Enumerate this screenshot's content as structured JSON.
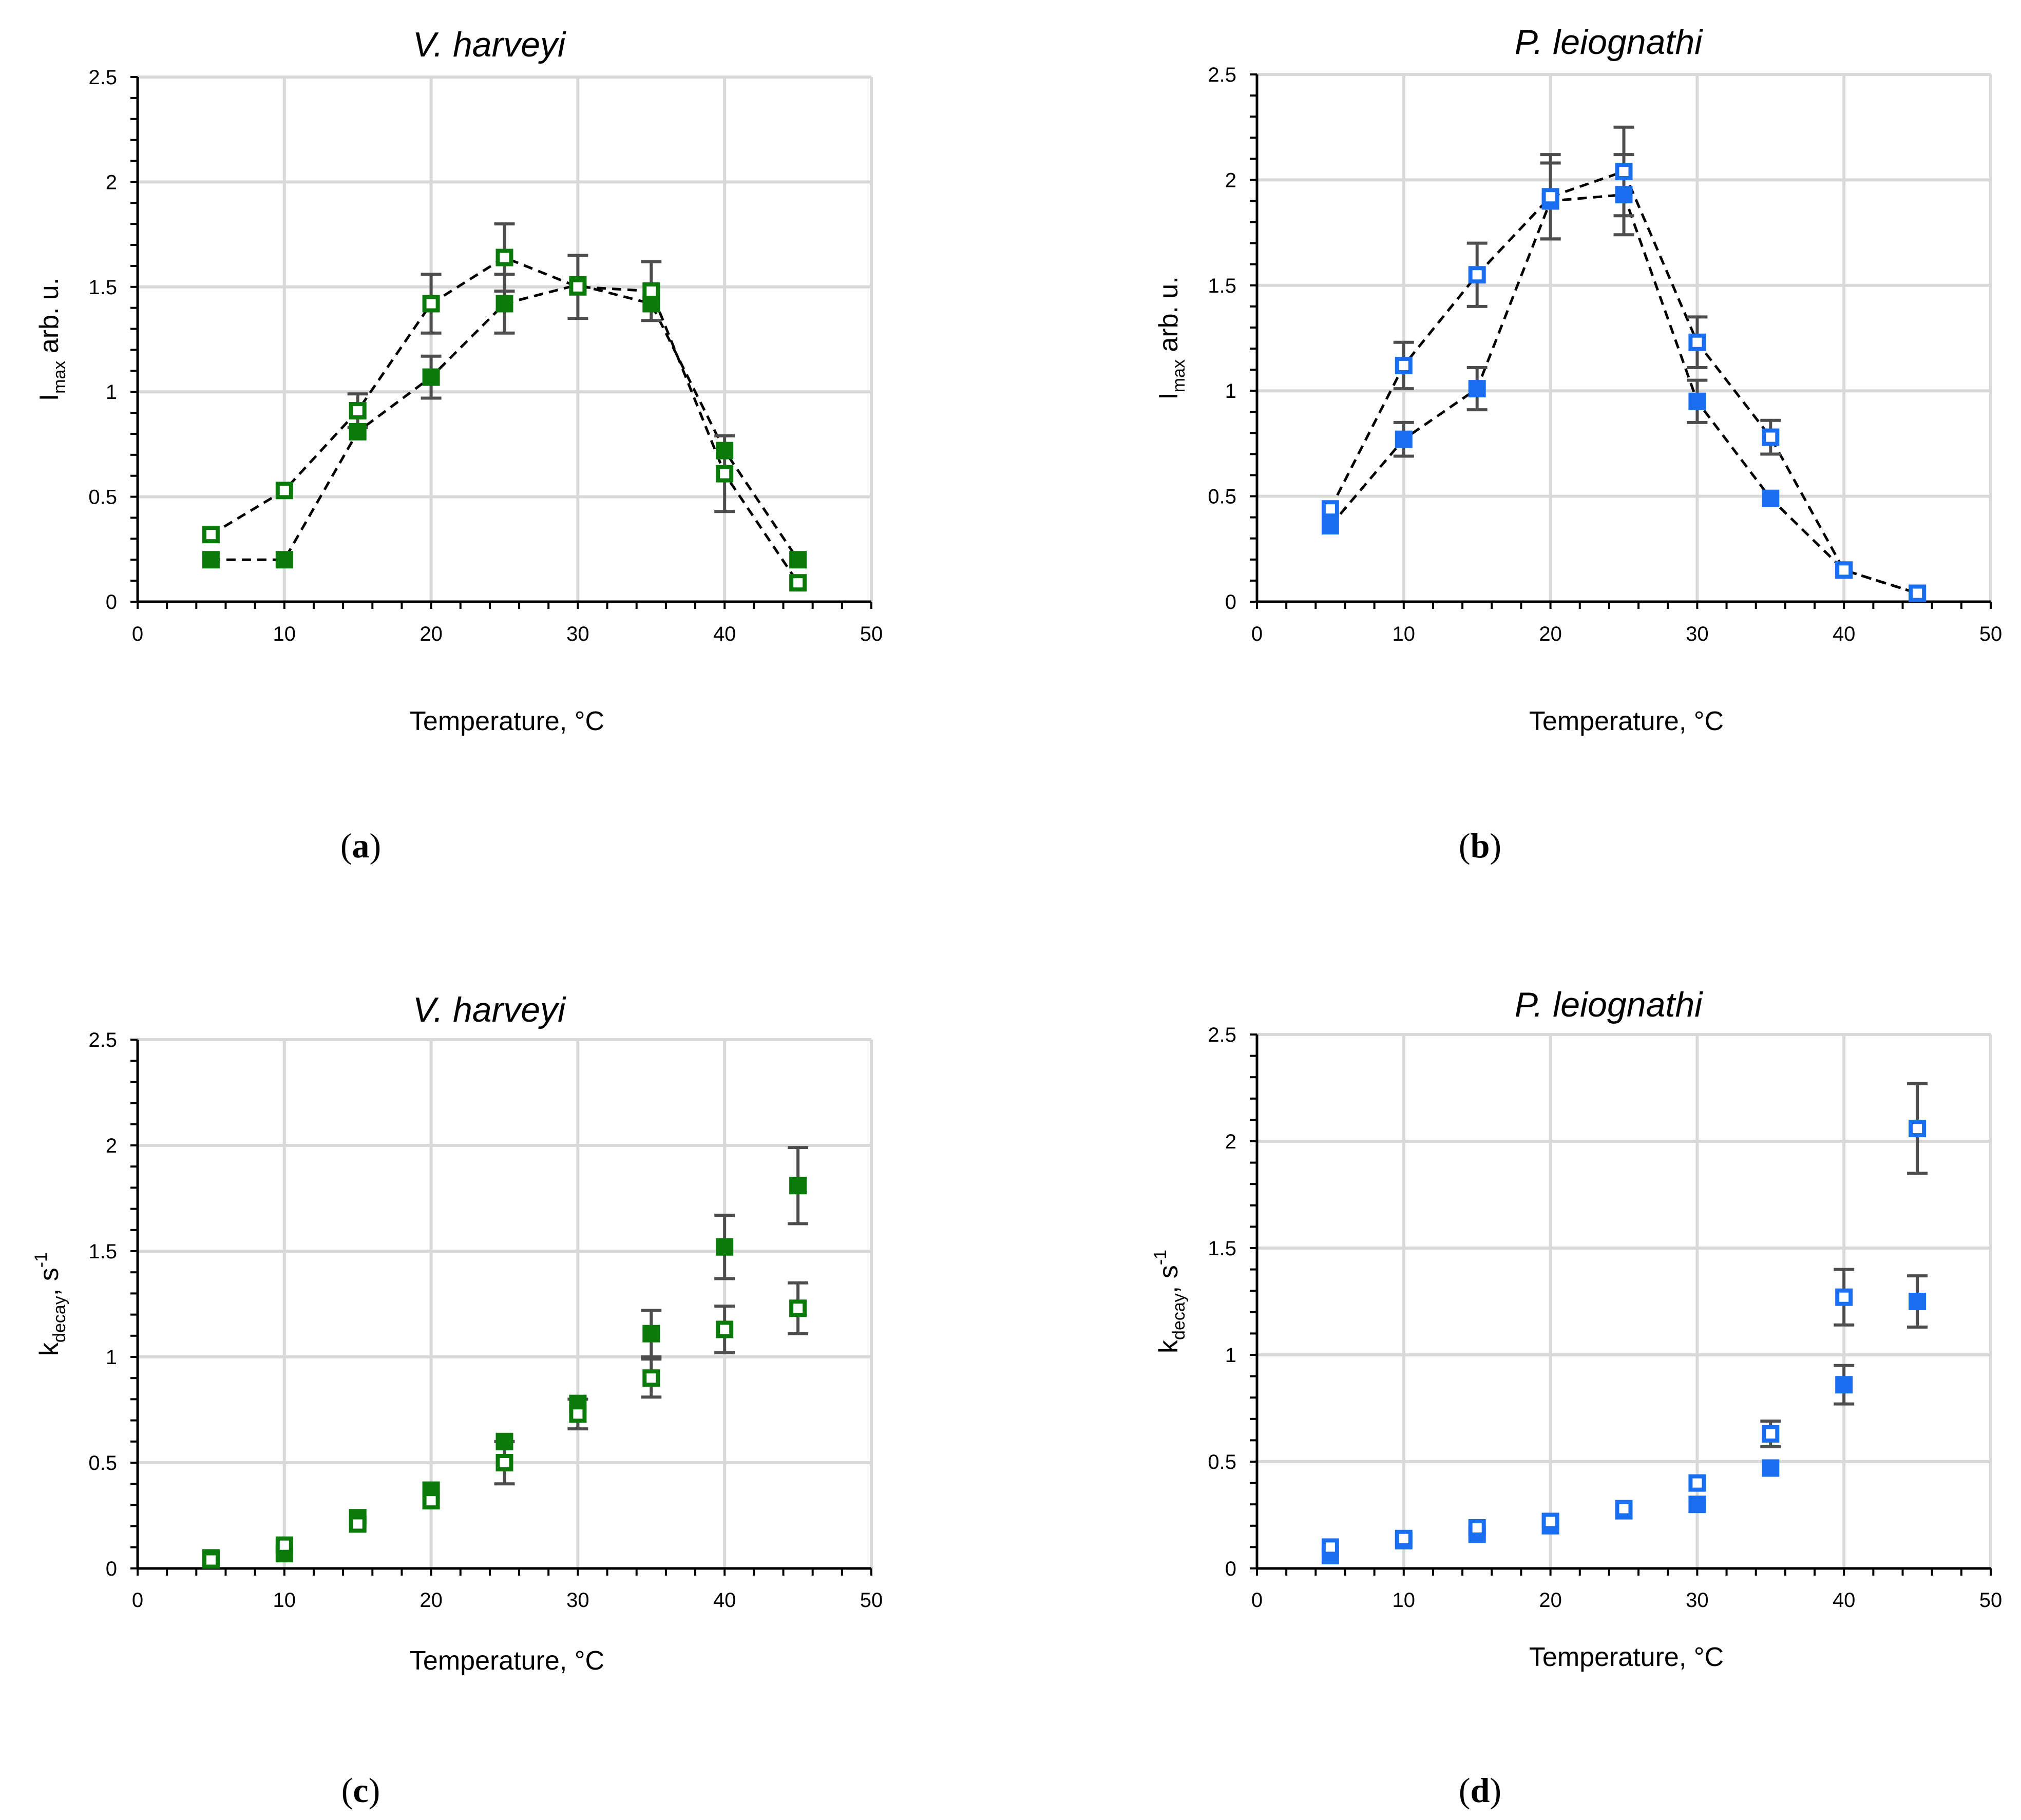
{
  "figure": {
    "x_axis_label": "Temperature, °C",
    "x_ticks": [
      "0",
      "10",
      "20",
      "30",
      "40",
      "50"
    ],
    "y_ticks": [
      "0",
      "0.5",
      "1",
      "1.5",
      "2",
      "2.5"
    ],
    "marker_styles": {
      "filled": "filled square",
      "open": "open square"
    }
  },
  "colors": {
    "green": "#0a7a0a",
    "blue": "#1a6ff0",
    "errorbar": "#4d4d4d",
    "grid": "#d9d9d9",
    "dashed": "#000000"
  },
  "chart_data": [
    {
      "type": "scatter",
      "panel": "a",
      "title": "V. harveyi",
      "ylabel_main": "I",
      "ylabel_sub": "max",
      "ylabel_rest": " arb. u.",
      "xlabel": "Temperature, °C",
      "xlim": [
        0,
        50
      ],
      "ylim": [
        0,
        2.5
      ],
      "color": "green",
      "dashed_lines": true,
      "series": [
        {
          "name": "filled",
          "x": [
            5,
            10,
            15,
            20,
            25,
            30,
            35,
            40,
            45
          ],
          "y": [
            0.2,
            0.2,
            0.81,
            1.07,
            1.42,
            1.51,
            1.42,
            0.72,
            0.2
          ],
          "err": [
            0,
            0,
            0,
            0.1,
            0.14,
            0,
            0,
            0,
            0
          ]
        },
        {
          "name": "open",
          "x": [
            5,
            10,
            15,
            20,
            25,
            30,
            35,
            40,
            45
          ],
          "y": [
            0.32,
            0.53,
            0.91,
            1.42,
            1.64,
            1.5,
            1.48,
            0.61,
            0.09
          ],
          "err": [
            0,
            0,
            0.08,
            0.14,
            0.16,
            0.15,
            0.14,
            0.18,
            0
          ]
        }
      ]
    },
    {
      "type": "scatter",
      "panel": "b",
      "title": "P. leiognathi",
      "ylabel_main": "I",
      "ylabel_sub": "max",
      "ylabel_rest": " arb. u.",
      "xlabel": "Temperature, °C",
      "xlim": [
        0,
        50
      ],
      "ylim": [
        0,
        2.5
      ],
      "color": "blue",
      "dashed_lines": true,
      "series": [
        {
          "name": "filled",
          "x": [
            5,
            10,
            15,
            20,
            25,
            30,
            35,
            40,
            45
          ],
          "y": [
            0.36,
            0.77,
            1.01,
            1.9,
            1.93,
            0.95,
            0.49,
            0.15,
            0.04
          ],
          "err": [
            0,
            0.08,
            0.1,
            0.18,
            0.19,
            0.1,
            0,
            0,
            0
          ]
        },
        {
          "name": "open",
          "x": [
            5,
            10,
            15,
            20,
            25,
            30,
            35,
            40,
            45
          ],
          "y": [
            0.44,
            1.12,
            1.55,
            1.92,
            2.04,
            1.23,
            0.78,
            0.15,
            0.04
          ],
          "err": [
            0,
            0.11,
            0.15,
            0.2,
            0.21,
            0.12,
            0.08,
            0,
            0
          ]
        }
      ]
    },
    {
      "type": "scatter",
      "panel": "c",
      "title": "V. harveyi",
      "ylabel_main": "k",
      "ylabel_sub": "decay",
      "ylabel_rest": ", s",
      "ylabel_sup": "-1",
      "xlabel": "Temperature, °C",
      "xlim": [
        0,
        50
      ],
      "ylim": [
        0,
        2.5
      ],
      "color": "green",
      "dashed_lines": false,
      "series": [
        {
          "name": "filled",
          "x": [
            5,
            10,
            15,
            20,
            25,
            30,
            35,
            40,
            45
          ],
          "y": [
            0.05,
            0.07,
            0.24,
            0.37,
            0.6,
            0.78,
            1.11,
            1.52,
            1.81
          ],
          "err": [
            0,
            0,
            0,
            0,
            0,
            0,
            0.11,
            0.15,
            0.18
          ]
        },
        {
          "name": "open",
          "x": [
            5,
            10,
            15,
            20,
            25,
            30,
            35,
            40,
            45
          ],
          "y": [
            0.04,
            0.11,
            0.21,
            0.32,
            0.5,
            0.73,
            0.9,
            1.13,
            1.23
          ],
          "err": [
            0,
            0,
            0,
            0,
            0.1,
            0.07,
            0.09,
            0.11,
            0.12
          ]
        }
      ]
    },
    {
      "type": "scatter",
      "panel": "d",
      "title": "P. leiognathi",
      "ylabel_main": "k",
      "ylabel_sub": "decay",
      "ylabel_rest": ", s",
      "ylabel_sup": "-1",
      "xlabel": "Temperature, °C",
      "xlim": [
        0,
        50
      ],
      "ylim": [
        0,
        2.5
      ],
      "color": "blue",
      "dashed_lines": false,
      "series": [
        {
          "name": "filled",
          "x": [
            5,
            10,
            15,
            20,
            25,
            30,
            35,
            40,
            45
          ],
          "y": [
            0.06,
            0.13,
            0.16,
            0.2,
            0.27,
            0.3,
            0.47,
            0.86,
            1.25
          ],
          "err": [
            0,
            0,
            0,
            0,
            0,
            0,
            0,
            0.09,
            0.12
          ]
        },
        {
          "name": "open",
          "x": [
            5,
            10,
            15,
            20,
            25,
            30,
            35,
            40,
            45
          ],
          "y": [
            0.1,
            0.14,
            0.19,
            0.22,
            0.28,
            0.4,
            0.63,
            1.27,
            2.06
          ],
          "err": [
            0,
            0,
            0,
            0,
            0,
            0,
            0.06,
            0.13,
            0.21
          ]
        }
      ]
    }
  ]
}
